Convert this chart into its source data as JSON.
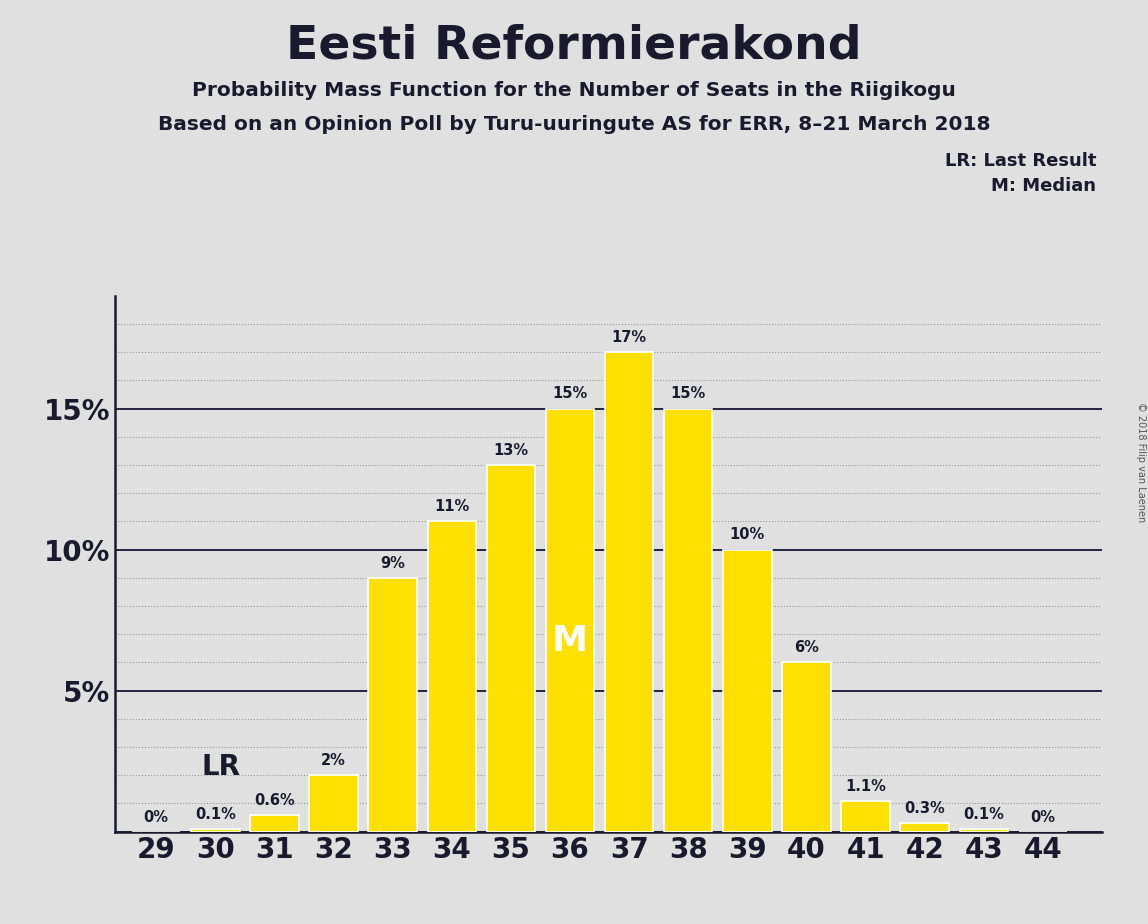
{
  "title": "Eesti Reformierakond",
  "subtitle1": "Probability Mass Function for the Number of Seats in the Riigikogu",
  "subtitle2": "Based on an Opinion Poll by Turu-uuringute AS for ERR, 8–21 March 2018",
  "copyright": "© 2018 Filip van Laenen",
  "seats": [
    29,
    30,
    31,
    32,
    33,
    34,
    35,
    36,
    37,
    38,
    39,
    40,
    41,
    42,
    43,
    44
  ],
  "probabilities": [
    0.0,
    0.1,
    0.6,
    2.0,
    9.0,
    11.0,
    13.0,
    15.0,
    17.0,
    15.0,
    10.0,
    6.0,
    1.1,
    0.3,
    0.1,
    0.0
  ],
  "labels": [
    "0%",
    "0.1%",
    "0.6%",
    "2%",
    "9%",
    "11%",
    "13%",
    "15%",
    "17%",
    "15%",
    "10%",
    "6%",
    "1.1%",
    "0.3%",
    "0.1%",
    "0%"
  ],
  "bar_color": "#FFE000",
  "bar_edge_color": "#FFFFFF",
  "median_seat": 36,
  "last_result_seat": 30,
  "ylim": [
    0,
    19
  ],
  "ytick_positions": [
    0,
    5,
    10,
    15
  ],
  "ytick_labels": [
    "",
    "5%",
    "10%",
    "15%"
  ],
  "background_color": "#E0E0E0",
  "title_color": "#1a1a2e",
  "axis_color": "#1a1a2e",
  "solid_line_color": "#222244",
  "dotted_line_color": "#999999",
  "legend_text_lr": "LR: Last Result",
  "legend_text_m": "M: Median",
  "lr_label": "LR",
  "m_label": "M",
  "copyright_color": "#555555"
}
